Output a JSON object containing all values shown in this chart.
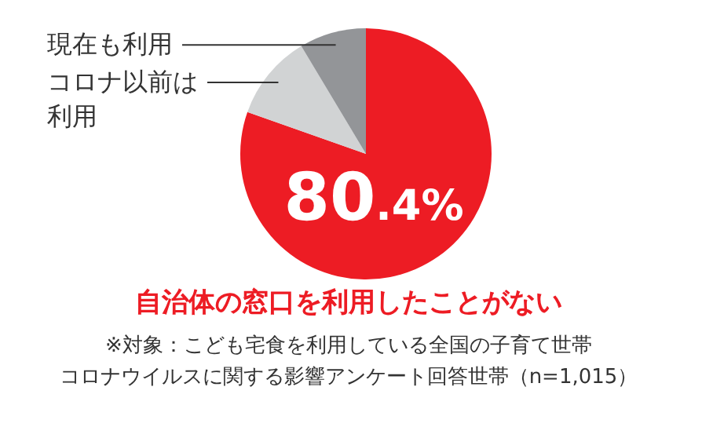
{
  "chart_data": {
    "type": "pie",
    "categories": [
      "自治体の窓口を利用したことがない",
      "コロナ以前は利用",
      "現在も利用"
    ],
    "values": [
      80.4,
      11.0,
      8.6
    ],
    "colors": [
      "#ed1c24",
      "#d1d3d4",
      "#939598"
    ],
    "value_labels": [
      "80.4%",
      null,
      null
    ],
    "annotations": [
      "※対象：こども宅食を利用している全国の子育て世帯",
      "コロナウイルスに関する影響アンケート回答世帯（n=1,015）"
    ]
  }
}
